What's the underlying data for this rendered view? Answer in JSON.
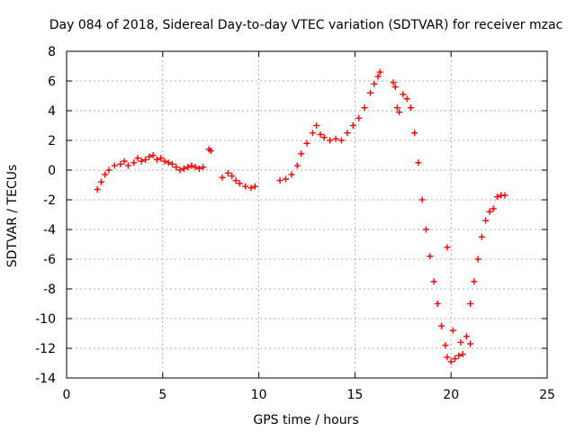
{
  "chart_data": {
    "type": "scatter",
    "title": "Day 084 of 2018, Sidereal Day-to-day VTEC variation (SDTVAR) for receiver mzac",
    "xlabel": "GPS time / hours",
    "ylabel": "SDTVAR / TECUs",
    "xlim": [
      0,
      25
    ],
    "ylim": [
      -14,
      8
    ],
    "xticks": [
      0,
      5,
      10,
      15,
      20,
      25
    ],
    "yticks": [
      -14,
      -12,
      -10,
      -8,
      -6,
      -4,
      -2,
      0,
      2,
      4,
      6,
      8
    ],
    "grid": true,
    "marker": "+",
    "color": "#ff0000",
    "series": [
      {
        "name": "SDTVAR",
        "x": [
          1.6,
          1.8,
          2.0,
          2.2,
          2.5,
          2.8,
          3.0,
          3.2,
          3.5,
          3.7,
          3.9,
          4.1,
          4.3,
          4.5,
          4.7,
          4.9,
          5.1,
          5.3,
          5.5,
          5.7,
          5.9,
          6.1,
          6.3,
          6.5,
          6.7,
          6.9,
          7.1,
          7.4,
          7.5,
          8.1,
          8.4,
          8.6,
          8.8,
          9.0,
          9.3,
          9.6,
          9.8,
          11.1,
          11.4,
          11.7,
          12.0,
          12.2,
          12.5,
          12.8,
          13.0,
          13.2,
          13.4,
          13.7,
          14.0,
          14.3,
          14.6,
          14.9,
          15.2,
          15.5,
          15.8,
          16.0,
          16.2,
          16.3,
          17.0,
          17.1,
          17.2,
          17.3,
          17.5,
          17.7,
          17.9,
          18.1,
          18.3,
          18.5,
          18.7,
          18.9,
          19.1,
          19.3,
          19.5,
          19.7,
          19.8,
          20.0,
          20.2,
          20.4,
          20.6,
          20.8,
          21.0,
          21.2,
          21.4,
          21.6,
          21.8,
          22.0,
          22.2,
          22.4,
          22.6,
          22.8,
          19.8,
          20.1,
          20.5,
          21.0
        ],
        "y": [
          -1.3,
          -0.8,
          -0.3,
          0.0,
          0.3,
          0.4,
          0.6,
          0.3,
          0.5,
          0.8,
          0.6,
          0.7,
          0.9,
          1.0,
          0.7,
          0.8,
          0.6,
          0.5,
          0.4,
          0.2,
          0.0,
          0.1,
          0.2,
          0.3,
          0.2,
          0.1,
          0.2,
          1.4,
          1.3,
          -0.5,
          -0.2,
          -0.4,
          -0.7,
          -0.9,
          -1.1,
          -1.2,
          -1.1,
          -0.7,
          -0.6,
          -0.3,
          0.3,
          1.1,
          1.8,
          2.5,
          3.0,
          2.4,
          2.2,
          2.0,
          2.1,
          2.0,
          2.5,
          3.0,
          3.5,
          4.2,
          5.2,
          5.8,
          6.3,
          6.6,
          5.9,
          5.6,
          4.2,
          3.9,
          5.1,
          4.8,
          4.2,
          2.5,
          0.5,
          -2.0,
          -4.0,
          -5.8,
          -7.5,
          -9.0,
          -10.5,
          -11.8,
          -12.6,
          -12.9,
          -12.7,
          -12.5,
          -12.4,
          -11.2,
          -9.0,
          -7.5,
          -6.0,
          -4.5,
          -3.4,
          -2.8,
          -2.6,
          -1.8,
          -1.7,
          -1.7,
          -5.2,
          -10.8,
          -11.6,
          -11.7
        ]
      }
    ]
  }
}
